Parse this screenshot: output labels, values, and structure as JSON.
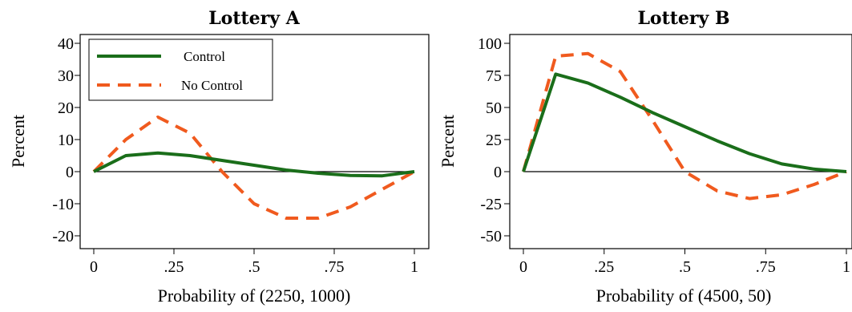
{
  "colors": {
    "control": "#1a6e1a",
    "no_control": "#f05a1e",
    "zero_line": "#000000"
  },
  "chart_data": [
    {
      "type": "line",
      "title": "Lottery A",
      "xlabel": "Probability of (2250, 1000)",
      "ylabel": "Percent",
      "xlim": [
        0,
        1
      ],
      "ylim": [
        -20,
        40
      ],
      "xticks": [
        0,
        0.25,
        0.5,
        0.75,
        1
      ],
      "xtick_labels": [
        "0",
        ".25",
        ".5",
        ".75",
        "1"
      ],
      "yticks": [
        40,
        30,
        20,
        10,
        0,
        -10,
        -20
      ],
      "ytick_labels": [
        "40",
        "30",
        "20",
        "10",
        "0",
        "-10",
        "-20"
      ],
      "legend": {
        "position": "top-left",
        "entries": [
          "Control",
          "No Control"
        ]
      },
      "x": [
        0,
        0.1,
        0.2,
        0.3,
        0.4,
        0.5,
        0.6,
        0.7,
        0.8,
        0.9,
        1.0
      ],
      "series": [
        {
          "name": "Control",
          "style": "solid",
          "values": [
            0,
            5,
            5.8,
            5,
            3.5,
            2,
            0.5,
            -0.5,
            -1.2,
            -1.3,
            0
          ]
        },
        {
          "name": "No Control",
          "style": "dashed",
          "values": [
            0,
            10,
            17,
            12,
            0,
            -10,
            -14.5,
            -14.5,
            -11,
            -5.5,
            0
          ]
        }
      ]
    },
    {
      "type": "line",
      "title": "Lottery B",
      "xlabel": "Probability of (4500, 50)",
      "ylabel": "Percent",
      "xlim": [
        0,
        1
      ],
      "ylim": [
        -60,
        100
      ],
      "xticks": [
        0,
        0.25,
        0.5,
        0.75,
        1
      ],
      "xtick_labels": [
        "0",
        ".25",
        ".5",
        ".75",
        "1"
      ],
      "yticks": [
        100,
        75,
        50,
        25,
        0,
        -25,
        -50
      ],
      "ytick_labels": [
        "100",
        "75",
        "50",
        "25",
        "0",
        "-25",
        "-50"
      ],
      "legend": null,
      "x": [
        0,
        0.1,
        0.2,
        0.3,
        0.4,
        0.5,
        0.6,
        0.7,
        0.8,
        0.9,
        1.0
      ],
      "series": [
        {
          "name": "Control",
          "style": "solid",
          "values": [
            0,
            76,
            69,
            58,
            46,
            35,
            24,
            14,
            6,
            2,
            0
          ]
        },
        {
          "name": "No Control",
          "style": "dashed",
          "values": [
            0,
            90,
            92,
            78,
            40,
            0,
            -15,
            -21,
            -18,
            -10,
            0
          ]
        }
      ]
    }
  ]
}
